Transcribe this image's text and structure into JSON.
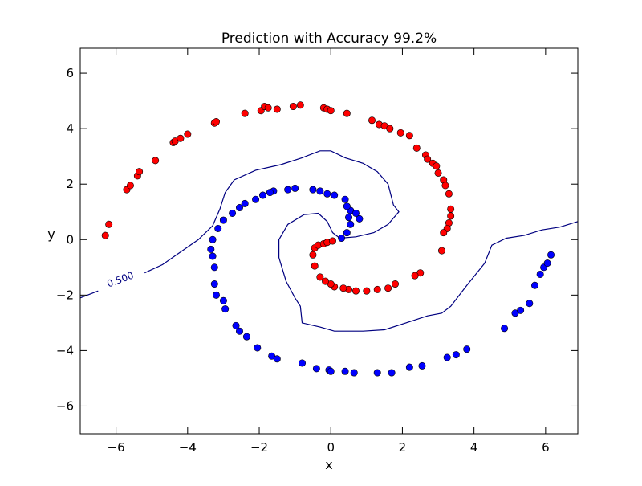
{
  "chart_data": {
    "type": "scatter",
    "title": "Prediction with Accuracy 99.2%",
    "xlabel": "x",
    "ylabel": "y",
    "xlim": [
      -7,
      6.9
    ],
    "ylim": [
      -7,
      6.9
    ],
    "xticks": [
      -6,
      -4,
      -2,
      0,
      2,
      4,
      6
    ],
    "yticks": [
      -6,
      -4,
      -2,
      0,
      2,
      4,
      6
    ],
    "xtick_labels": [
      "−6",
      "−4",
      "−2",
      "0",
      "2",
      "4",
      "6"
    ],
    "ytick_labels": [
      "−6",
      "−4",
      "−2",
      "0",
      "2",
      "4",
      "6"
    ],
    "grid": false,
    "colors": {
      "class_red": "#ff0000",
      "class_blue": "#0000ff",
      "contour": "#000080"
    },
    "contour": {
      "level_label": "0.500",
      "points": [
        [
          -7.0,
          -2.1
        ],
        [
          -6.5,
          -1.85
        ],
        [
          -6.0,
          -1.6
        ],
        [
          -5.5,
          -1.35
        ],
        [
          -5.2,
          -1.2
        ],
        [
          -4.7,
          -0.9
        ],
        [
          -4.2,
          -0.45
        ],
        [
          -3.7,
          0.0
        ],
        [
          -3.3,
          0.5
        ],
        [
          -3.1,
          1.1
        ],
        [
          -2.95,
          1.7
        ],
        [
          -2.7,
          2.15
        ],
        [
          -2.1,
          2.5
        ],
        [
          -1.4,
          2.7
        ],
        [
          -0.8,
          2.95
        ],
        [
          -0.3,
          3.2
        ],
        [
          0.0,
          3.2
        ],
        [
          0.4,
          2.95
        ],
        [
          0.9,
          2.75
        ],
        [
          1.3,
          2.45
        ],
        [
          1.6,
          2.0
        ],
        [
          1.75,
          1.25
        ],
        [
          1.9,
          1.0
        ],
        [
          1.6,
          0.55
        ],
        [
          1.2,
          0.25
        ],
        [
          0.7,
          0.1
        ],
        [
          0.25,
          0.05
        ],
        [
          0.05,
          0.25
        ],
        [
          -0.1,
          0.65
        ],
        [
          -0.35,
          0.95
        ],
        [
          -0.75,
          0.9
        ],
        [
          -1.2,
          0.55
        ],
        [
          -1.45,
          0.0
        ],
        [
          -1.45,
          -0.65
        ],
        [
          -1.25,
          -1.5
        ],
        [
          -1.0,
          -2.1
        ],
        [
          -0.85,
          -2.4
        ],
        [
          -0.8,
          -3.0
        ],
        [
          -0.3,
          -3.15
        ],
        [
          0.1,
          -3.3
        ],
        [
          0.9,
          -3.3
        ],
        [
          1.5,
          -3.25
        ],
        [
          2.1,
          -3.0
        ],
        [
          2.7,
          -2.75
        ],
        [
          3.1,
          -2.65
        ],
        [
          3.35,
          -2.4
        ],
        [
          3.8,
          -1.65
        ],
        [
          4.3,
          -0.85
        ],
        [
          4.5,
          -0.2
        ],
        [
          4.9,
          0.05
        ],
        [
          5.4,
          0.15
        ],
        [
          5.9,
          0.35
        ],
        [
          6.4,
          0.45
        ],
        [
          6.9,
          0.65
        ]
      ]
    },
    "series": [
      {
        "color": "red",
        "points": [
          [
            -6.3,
            0.15
          ],
          [
            -6.2,
            0.55
          ],
          [
            -5.7,
            1.8
          ],
          [
            -5.6,
            1.95
          ],
          [
            -5.4,
            2.3
          ],
          [
            -5.35,
            2.45
          ],
          [
            -4.9,
            2.85
          ],
          [
            -4.4,
            3.5
          ],
          [
            -4.35,
            3.55
          ],
          [
            -4.2,
            3.65
          ],
          [
            -4.0,
            3.8
          ],
          [
            -3.25,
            4.2
          ],
          [
            -3.2,
            4.25
          ],
          [
            -2.4,
            4.55
          ],
          [
            -1.95,
            4.65
          ],
          [
            -1.85,
            4.8
          ],
          [
            -1.75,
            4.75
          ],
          [
            -1.5,
            4.7
          ],
          [
            -1.05,
            4.8
          ],
          [
            -0.85,
            4.85
          ],
          [
            -0.2,
            4.75
          ],
          [
            -0.1,
            4.7
          ],
          [
            0.0,
            4.65
          ],
          [
            0.45,
            4.55
          ],
          [
            1.15,
            4.3
          ],
          [
            1.35,
            4.15
          ],
          [
            1.5,
            4.1
          ],
          [
            1.65,
            4.0
          ],
          [
            1.95,
            3.85
          ],
          [
            2.2,
            3.75
          ],
          [
            2.4,
            3.3
          ],
          [
            2.65,
            3.05
          ],
          [
            2.7,
            2.9
          ],
          [
            2.85,
            2.75
          ],
          [
            2.95,
            2.65
          ],
          [
            3.0,
            2.4
          ],
          [
            3.15,
            2.15
          ],
          [
            3.2,
            1.95
          ],
          [
            3.3,
            1.65
          ],
          [
            3.35,
            1.1
          ],
          [
            3.35,
            0.85
          ],
          [
            3.3,
            0.6
          ],
          [
            3.25,
            0.4
          ],
          [
            3.15,
            0.25
          ],
          [
            3.1,
            -0.4
          ],
          [
            2.5,
            -1.2
          ],
          [
            2.35,
            -1.3
          ],
          [
            1.8,
            -1.6
          ],
          [
            1.6,
            -1.75
          ],
          [
            1.3,
            -1.8
          ],
          [
            1.0,
            -1.85
          ],
          [
            0.7,
            -1.85
          ],
          [
            0.5,
            -1.8
          ],
          [
            0.35,
            -1.75
          ],
          [
            0.1,
            -1.7
          ],
          [
            0.0,
            -1.6
          ],
          [
            -0.15,
            -1.5
          ],
          [
            -0.3,
            -1.35
          ],
          [
            -0.45,
            -0.95
          ],
          [
            -0.5,
            -0.55
          ],
          [
            -0.45,
            -0.3
          ],
          [
            -0.35,
            -0.2
          ],
          [
            -0.2,
            -0.15
          ],
          [
            -0.1,
            -0.1
          ],
          [
            0.05,
            -0.05
          ]
        ]
      },
      {
        "color": "blue",
        "points": [
          [
            0.3,
            0.05
          ],
          [
            0.45,
            0.25
          ],
          [
            0.55,
            0.55
          ],
          [
            0.5,
            0.8
          ],
          [
            0.55,
            1.05
          ],
          [
            0.45,
            1.2
          ],
          [
            0.4,
            1.45
          ],
          [
            0.1,
            1.6
          ],
          [
            -0.1,
            1.65
          ],
          [
            -0.3,
            1.75
          ],
          [
            -0.5,
            1.8
          ],
          [
            -1.0,
            1.85
          ],
          [
            -1.2,
            1.8
          ],
          [
            -1.6,
            1.75
          ],
          [
            -1.7,
            1.7
          ],
          [
            -1.9,
            1.6
          ],
          [
            -2.1,
            1.45
          ],
          [
            -2.4,
            1.3
          ],
          [
            -2.55,
            1.15
          ],
          [
            -2.75,
            0.95
          ],
          [
            -3.0,
            0.7
          ],
          [
            -3.15,
            0.4
          ],
          [
            -3.3,
            0.0
          ],
          [
            -3.35,
            -0.35
          ],
          [
            -3.3,
            -0.6
          ],
          [
            -3.25,
            -1.0
          ],
          [
            -3.25,
            -1.6
          ],
          [
            -3.2,
            -2.0
          ],
          [
            -3.0,
            -2.2
          ],
          [
            -2.95,
            -2.5
          ],
          [
            -2.65,
            -3.1
          ],
          [
            -2.55,
            -3.3
          ],
          [
            -2.35,
            -3.5
          ],
          [
            -2.05,
            -3.9
          ],
          [
            -1.65,
            -4.2
          ],
          [
            -1.5,
            -4.3
          ],
          [
            -0.8,
            -4.45
          ],
          [
            -0.4,
            -4.65
          ],
          [
            -0.05,
            -4.7
          ],
          [
            0.0,
            -4.75
          ],
          [
            0.4,
            -4.75
          ],
          [
            0.65,
            -4.8
          ],
          [
            1.3,
            -4.8
          ],
          [
            1.7,
            -4.8
          ],
          [
            2.2,
            -4.6
          ],
          [
            2.55,
            -4.55
          ],
          [
            3.25,
            -4.25
          ],
          [
            3.5,
            -4.15
          ],
          [
            3.8,
            -3.95
          ],
          [
            4.85,
            -3.2
          ],
          [
            5.15,
            -2.65
          ],
          [
            5.3,
            -2.55
          ],
          [
            5.55,
            -2.3
          ],
          [
            5.7,
            -1.65
          ],
          [
            5.85,
            -1.25
          ],
          [
            5.95,
            -1.0
          ],
          [
            6.05,
            -0.85
          ],
          [
            6.15,
            -0.55
          ],
          [
            0.8,
            0.75
          ],
          [
            0.7,
            0.95
          ]
        ]
      }
    ]
  }
}
